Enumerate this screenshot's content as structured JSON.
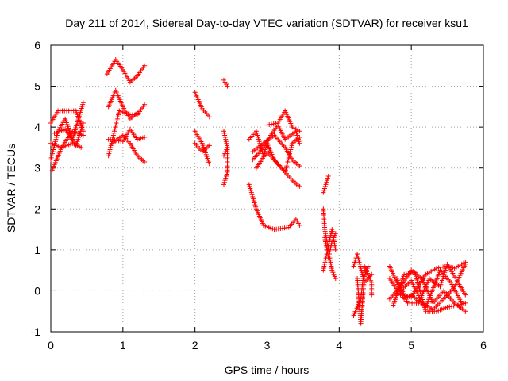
{
  "chart_data": {
    "type": "scatter",
    "title": "Day 211 of 2014, Sidereal Day-to-day VTEC variation (SDTVAR) for receiver ksu1",
    "xlabel": "GPS time / hours",
    "ylabel": "SDTVAR / TECUs",
    "xlim": [
      0,
      6
    ],
    "ylim": [
      -1,
      6
    ],
    "xticks": [
      0,
      1,
      2,
      3,
      4,
      5,
      6
    ],
    "yticks": [
      -1,
      0,
      1,
      2,
      3,
      4,
      5,
      6
    ],
    "grid": true,
    "marker": "+",
    "series_color": "#ff0000",
    "tracks": [
      {
        "name": "t1",
        "points": [
          [
            0.0,
            3.2
          ],
          [
            0.1,
            3.9
          ],
          [
            0.2,
            4.2
          ],
          [
            0.3,
            3.7
          ],
          [
            0.45,
            4.6
          ]
        ]
      },
      {
        "name": "t2",
        "points": [
          [
            0.0,
            4.1
          ],
          [
            0.1,
            4.4
          ],
          [
            0.25,
            4.4
          ],
          [
            0.35,
            4.4
          ],
          [
            0.45,
            3.9
          ]
        ]
      },
      {
        "name": "t3",
        "points": [
          [
            0.0,
            3.6
          ],
          [
            0.15,
            3.5
          ],
          [
            0.3,
            3.9
          ],
          [
            0.45,
            3.8
          ]
        ]
      },
      {
        "name": "t4",
        "points": [
          [
            0.02,
            2.95
          ],
          [
            0.15,
            3.5
          ],
          [
            0.3,
            3.6
          ],
          [
            0.42,
            3.5
          ]
        ]
      },
      {
        "name": "t5",
        "points": [
          [
            0.05,
            3.85
          ],
          [
            0.2,
            3.95
          ],
          [
            0.35,
            3.55
          ],
          [
            0.45,
            4.1
          ]
        ]
      },
      {
        "name": "t6",
        "points": [
          [
            0.78,
            5.3
          ],
          [
            0.9,
            5.65
          ],
          [
            1.0,
            5.4
          ],
          [
            1.1,
            5.1
          ],
          [
            1.2,
            5.25
          ],
          [
            1.3,
            5.5
          ]
        ]
      },
      {
        "name": "t7",
        "points": [
          [
            0.8,
            3.3
          ],
          [
            0.95,
            4.4
          ],
          [
            1.1,
            4.3
          ],
          [
            1.2,
            4.3
          ],
          [
            1.3,
            4.55
          ]
        ]
      },
      {
        "name": "t8",
        "points": [
          [
            0.8,
            4.5
          ],
          [
            0.9,
            4.9
          ],
          [
            1.0,
            4.5
          ],
          [
            1.1,
            4.2
          ],
          [
            1.2,
            4.35
          ]
        ]
      },
      {
        "name": "t9",
        "points": [
          [
            0.8,
            3.7
          ],
          [
            1.0,
            3.65
          ],
          [
            1.1,
            3.95
          ],
          [
            1.2,
            3.7
          ],
          [
            1.3,
            3.75
          ]
        ]
      },
      {
        "name": "t10",
        "points": [
          [
            0.85,
            3.6
          ],
          [
            1.0,
            3.8
          ],
          [
            1.1,
            3.6
          ],
          [
            1.2,
            3.3
          ],
          [
            1.3,
            3.15
          ]
        ]
      },
      {
        "name": "t11",
        "points": [
          [
            2.0,
            4.85
          ],
          [
            2.1,
            4.45
          ],
          [
            2.2,
            4.25
          ]
        ]
      },
      {
        "name": "t12",
        "points": [
          [
            2.0,
            3.9
          ],
          [
            2.1,
            3.6
          ],
          [
            2.2,
            3.1
          ]
        ]
      },
      {
        "name": "t13",
        "points": [
          [
            2.0,
            3.6
          ],
          [
            2.1,
            3.4
          ],
          [
            2.2,
            3.55
          ]
        ]
      },
      {
        "name": "t14",
        "points": [
          [
            2.4,
            5.15
          ],
          [
            2.45,
            5.0
          ]
        ]
      },
      {
        "name": "t15",
        "points": [
          [
            2.4,
            3.9
          ],
          [
            2.45,
            3.5
          ],
          [
            2.45,
            2.9
          ],
          [
            2.4,
            2.6
          ]
        ]
      },
      {
        "name": "t16",
        "points": [
          [
            2.4,
            3.3
          ],
          [
            2.45,
            3.5
          ]
        ]
      },
      {
        "name": "t17",
        "points": [
          [
            2.75,
            2.6
          ],
          [
            2.85,
            2.0
          ],
          [
            2.95,
            1.6
          ],
          [
            3.1,
            1.5
          ],
          [
            3.3,
            1.55
          ],
          [
            3.4,
            1.75
          ],
          [
            3.45,
            1.6
          ]
        ]
      },
      {
        "name": "t18",
        "points": [
          [
            2.75,
            3.7
          ],
          [
            2.85,
            3.9
          ],
          [
            2.95,
            3.3
          ],
          [
            3.0,
            3.6
          ],
          [
            3.1,
            3.2
          ],
          [
            3.25,
            2.9
          ],
          [
            3.35,
            2.7
          ],
          [
            3.45,
            2.55
          ]
        ]
      },
      {
        "name": "t19",
        "points": [
          [
            2.8,
            3.4
          ],
          [
            2.95,
            3.6
          ],
          [
            3.1,
            3.8
          ],
          [
            3.25,
            3.5
          ],
          [
            3.35,
            3.2
          ],
          [
            3.45,
            3.05
          ]
        ]
      },
      {
        "name": "t20",
        "points": [
          [
            2.8,
            3.2
          ],
          [
            2.95,
            3.5
          ],
          [
            3.05,
            3.8
          ],
          [
            3.15,
            4.05
          ],
          [
            3.25,
            3.7
          ],
          [
            3.4,
            3.9
          ],
          [
            3.45,
            3.6
          ]
        ]
      },
      {
        "name": "t21",
        "points": [
          [
            3.0,
            4.05
          ],
          [
            3.15,
            4.1
          ],
          [
            3.25,
            4.4
          ],
          [
            3.35,
            4.0
          ],
          [
            3.45,
            3.9
          ]
        ]
      },
      {
        "name": "t22",
        "points": [
          [
            2.85,
            3.0
          ],
          [
            3.0,
            3.4
          ],
          [
            3.15,
            3.1
          ],
          [
            3.25,
            2.9
          ],
          [
            3.35,
            3.6
          ],
          [
            3.45,
            3.75
          ]
        ]
      },
      {
        "name": "t23",
        "points": [
          [
            3.78,
            2.4
          ],
          [
            3.85,
            2.8
          ]
        ]
      },
      {
        "name": "t24",
        "points": [
          [
            3.78,
            2.0
          ],
          [
            3.8,
            1.5
          ],
          [
            3.85,
            1.0
          ],
          [
            3.9,
            0.5
          ],
          [
            3.95,
            0.3
          ]
        ]
      },
      {
        "name": "t25",
        "points": [
          [
            3.78,
            0.5
          ],
          [
            3.85,
            1.1
          ],
          [
            3.9,
            1.5
          ],
          [
            3.95,
            1.0
          ]
        ]
      },
      {
        "name": "t26",
        "points": [
          [
            3.8,
            1.3
          ],
          [
            3.85,
            0.8
          ],
          [
            3.9,
            1.2
          ],
          [
            3.95,
            1.4
          ]
        ]
      },
      {
        "name": "t27",
        "points": [
          [
            4.2,
            -0.6
          ],
          [
            4.3,
            -0.2
          ],
          [
            4.35,
            0.6
          ],
          [
            4.45,
            0.2
          ],
          [
            4.45,
            -0.1
          ]
        ]
      },
      {
        "name": "t28",
        "points": [
          [
            4.2,
            0.6
          ],
          [
            4.25,
            0.9
          ],
          [
            4.35,
            0.2
          ],
          [
            4.45,
            0.4
          ]
        ]
      },
      {
        "name": "t29",
        "points": [
          [
            4.25,
            0.3
          ],
          [
            4.3,
            -0.8
          ],
          [
            4.35,
            0.35
          ],
          [
            4.4,
            0.6
          ]
        ]
      },
      {
        "name": "t30",
        "points": [
          [
            4.7,
            0.6
          ],
          [
            4.8,
            0.2
          ],
          [
            4.9,
            -0.2
          ],
          [
            5.0,
            -0.1
          ],
          [
            5.2,
            -0.4
          ],
          [
            5.4,
            0.5
          ],
          [
            5.55,
            0.2
          ],
          [
            5.7,
            -0.3
          ]
        ]
      },
      {
        "name": "t31",
        "points": [
          [
            4.7,
            0.3
          ],
          [
            4.85,
            -0.1
          ],
          [
            5.0,
            -0.15
          ],
          [
            5.2,
            0.4
          ],
          [
            5.35,
            0.55
          ],
          [
            5.5,
            0.6
          ],
          [
            5.6,
            0.55
          ],
          [
            5.75,
            0.7
          ]
        ]
      },
      {
        "name": "t32",
        "points": [
          [
            4.7,
            -0.2
          ],
          [
            4.85,
            0.1
          ],
          [
            5.0,
            0.5
          ],
          [
            5.15,
            0.3
          ],
          [
            5.3,
            -0.3
          ],
          [
            5.45,
            0.0
          ],
          [
            5.6,
            -0.3
          ],
          [
            5.75,
            -0.5
          ]
        ]
      },
      {
        "name": "t33",
        "points": [
          [
            4.75,
            -0.35
          ],
          [
            4.9,
            0.4
          ],
          [
            5.05,
            0.45
          ],
          [
            5.2,
            -0.5
          ],
          [
            5.35,
            -0.5
          ],
          [
            5.5,
            -0.4
          ],
          [
            5.65,
            -0.35
          ],
          [
            5.75,
            -0.3
          ]
        ]
      },
      {
        "name": "t34",
        "points": [
          [
            4.8,
            0.3
          ],
          [
            4.95,
            -0.3
          ],
          [
            5.1,
            -0.3
          ],
          [
            5.25,
            0.3
          ],
          [
            5.4,
            0.1
          ],
          [
            5.5,
            0.65
          ],
          [
            5.65,
            0.2
          ],
          [
            5.75,
            -0.1
          ]
        ]
      },
      {
        "name": "t35",
        "points": [
          [
            4.85,
            0.0
          ],
          [
            5.0,
            0.25
          ],
          [
            5.15,
            -0.3
          ],
          [
            5.3,
            -0.45
          ],
          [
            5.45,
            -0.2
          ],
          [
            5.6,
            0.1
          ],
          [
            5.75,
            0.65
          ]
        ]
      }
    ]
  }
}
